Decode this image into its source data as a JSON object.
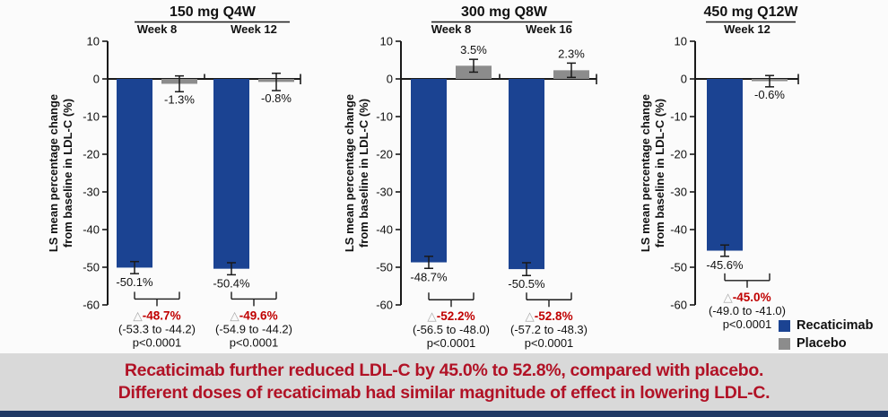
{
  "colors": {
    "recaticimab": "#1B4392",
    "placebo": "#8C8C8C",
    "delta_red": "#C00000",
    "axis": "#1a1a1a",
    "triangle_gray": "#ababab",
    "banner_text": "#B11226",
    "banner_bg": "#D9D9D9",
    "footer": "#1F3864"
  },
  "legend": [
    {
      "label": "Recaticimab",
      "color": "#1B4392"
    },
    {
      "label": "Placebo",
      "color": "#8C8C8C"
    }
  ],
  "banner": {
    "line1": "Recaticimab further reduced LDL-C by 45.0% to 52.8%, compared with placebo.",
    "line2": "Different doses of recaticimab had similar magnitude of effect in lowering LDL-C."
  },
  "chart_data": [
    {
      "type": "bar",
      "title": "150 mg Q4W",
      "ylabel_line1": "LS mean percentage change",
      "ylabel_line2": "from baseline in LDL-C (%)",
      "ylim": [
        -60,
        10
      ],
      "yticks": [
        10,
        0,
        -10,
        -20,
        -30,
        -40,
        -50,
        -60
      ],
      "series_names": [
        "Recaticimab",
        "Placebo"
      ],
      "groups": [
        {
          "label": "Week 8",
          "recaticimab": {
            "value": -50.1,
            "label": "-50.1%",
            "err": 1.6
          },
          "placebo": {
            "value": -1.3,
            "label": "-1.3%",
            "err": 2.1
          },
          "delta_label": "-48.7%",
          "delta_ci": "(-53.3 to -44.2)",
          "delta_p": "p<0.0001"
        },
        {
          "label": "Week 12",
          "recaticimab": {
            "value": -50.4,
            "label": "-50.4%",
            "err": 1.6
          },
          "placebo": {
            "value": -0.8,
            "label": "-0.8%",
            "err": 2.3
          },
          "delta_label": "-49.6%",
          "delta_ci": "(-54.9 to -44.2)",
          "delta_p": "p<0.0001"
        }
      ]
    },
    {
      "type": "bar",
      "title": "300 mg Q8W",
      "ylabel_line1": "LS mean percentage change",
      "ylabel_line2": "from baseline in LDL-C (%)",
      "ylim": [
        -60,
        10
      ],
      "yticks": [
        10,
        0,
        -10,
        -20,
        -30,
        -40,
        -50,
        -60
      ],
      "series_names": [
        "Recaticimab",
        "Placebo"
      ],
      "groups": [
        {
          "label": "Week 8",
          "recaticimab": {
            "value": -48.7,
            "label": "-48.7%",
            "err": 1.6
          },
          "placebo": {
            "value": 3.5,
            "label": "3.5%",
            "err": 1.7
          },
          "delta_label": "-52.2%",
          "delta_ci": "(-56.5 to -48.0)",
          "delta_p": "p<0.0001"
        },
        {
          "label": "Week 16",
          "recaticimab": {
            "value": -50.5,
            "label": "-50.5%",
            "err": 1.7
          },
          "placebo": {
            "value": 2.3,
            "label": "2.3%",
            "err": 1.9
          },
          "delta_label": "-52.8%",
          "delta_ci": "(-57.2 to -48.3)",
          "delta_p": "p<0.0001"
        }
      ]
    },
    {
      "type": "bar",
      "title": "450 mg Q12W",
      "ylabel_line1": "LS mean percentage change",
      "ylabel_line2": "from baseline in LDL-C (%)",
      "ylim": [
        -60,
        10
      ],
      "yticks": [
        10,
        0,
        -10,
        -20,
        -30,
        -40,
        -50,
        -60
      ],
      "series_names": [
        "Recaticimab",
        "Placebo"
      ],
      "groups": [
        {
          "label": "Week 12",
          "recaticimab": {
            "value": -45.6,
            "label": "-45.6%",
            "err": 1.5
          },
          "placebo": {
            "value": -0.6,
            "label": "-0.6%",
            "err": 1.5
          },
          "delta_label": "-45.0%",
          "delta_ci": "(-49.0 to -41.0)",
          "delta_p": "p<0.0001"
        }
      ]
    }
  ]
}
